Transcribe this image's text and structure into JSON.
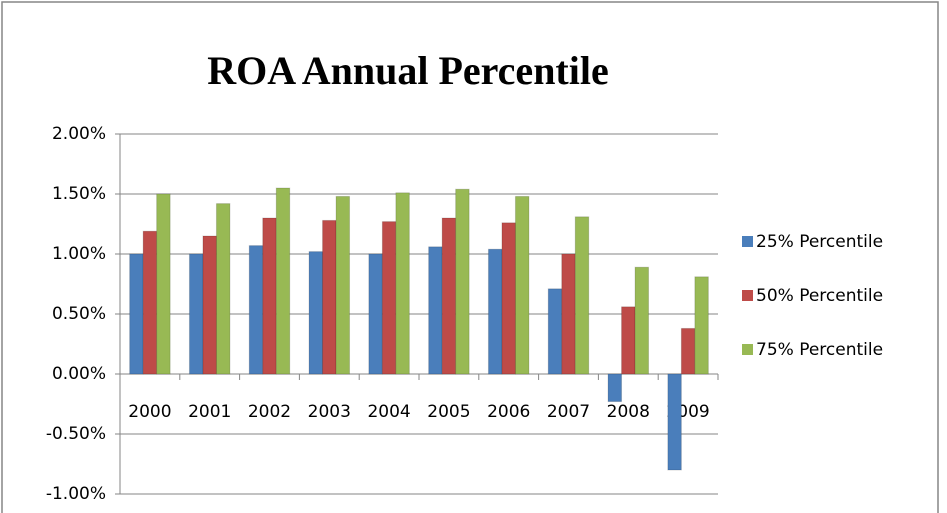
{
  "chart_data": {
    "type": "bar",
    "title": "ROA  Annual  Percentile",
    "categories": [
      "2000",
      "2001",
      "2002",
      "2003",
      "2004",
      "2005",
      "2006",
      "2007",
      "2008",
      "2009"
    ],
    "series": [
      {
        "name": "25% Percentile",
        "color": "#4a7ebb",
        "values": [
          1.0,
          1.0,
          1.07,
          1.02,
          1.0,
          1.06,
          1.04,
          0.71,
          -0.23,
          -0.8
        ]
      },
      {
        "name": "50% Percentile",
        "color": "#be4b48",
        "values": [
          1.19,
          1.15,
          1.3,
          1.28,
          1.27,
          1.3,
          1.26,
          1.0,
          0.56,
          0.38
        ]
      },
      {
        "name": "75% Percentile",
        "color": "#98b954",
        "values": [
          1.5,
          1.42,
          1.55,
          1.48,
          1.51,
          1.54,
          1.48,
          1.31,
          0.89,
          0.81
        ]
      }
    ],
    "ylim": [
      -1,
      2
    ],
    "yticks": [
      {
        "value": -1,
        "label": "-1.00%"
      },
      {
        "value": -0.5,
        "label": "-0.50%"
      },
      {
        "value": 0,
        "label": "0.00%"
      },
      {
        "value": 0.5,
        "label": "0.50%"
      },
      {
        "value": 1,
        "label": "1.00%"
      },
      {
        "value": 1.5,
        "label": "1.50%"
      },
      {
        "value": 2,
        "label": "2.00%"
      }
    ],
    "grid": true,
    "legend": "right"
  }
}
